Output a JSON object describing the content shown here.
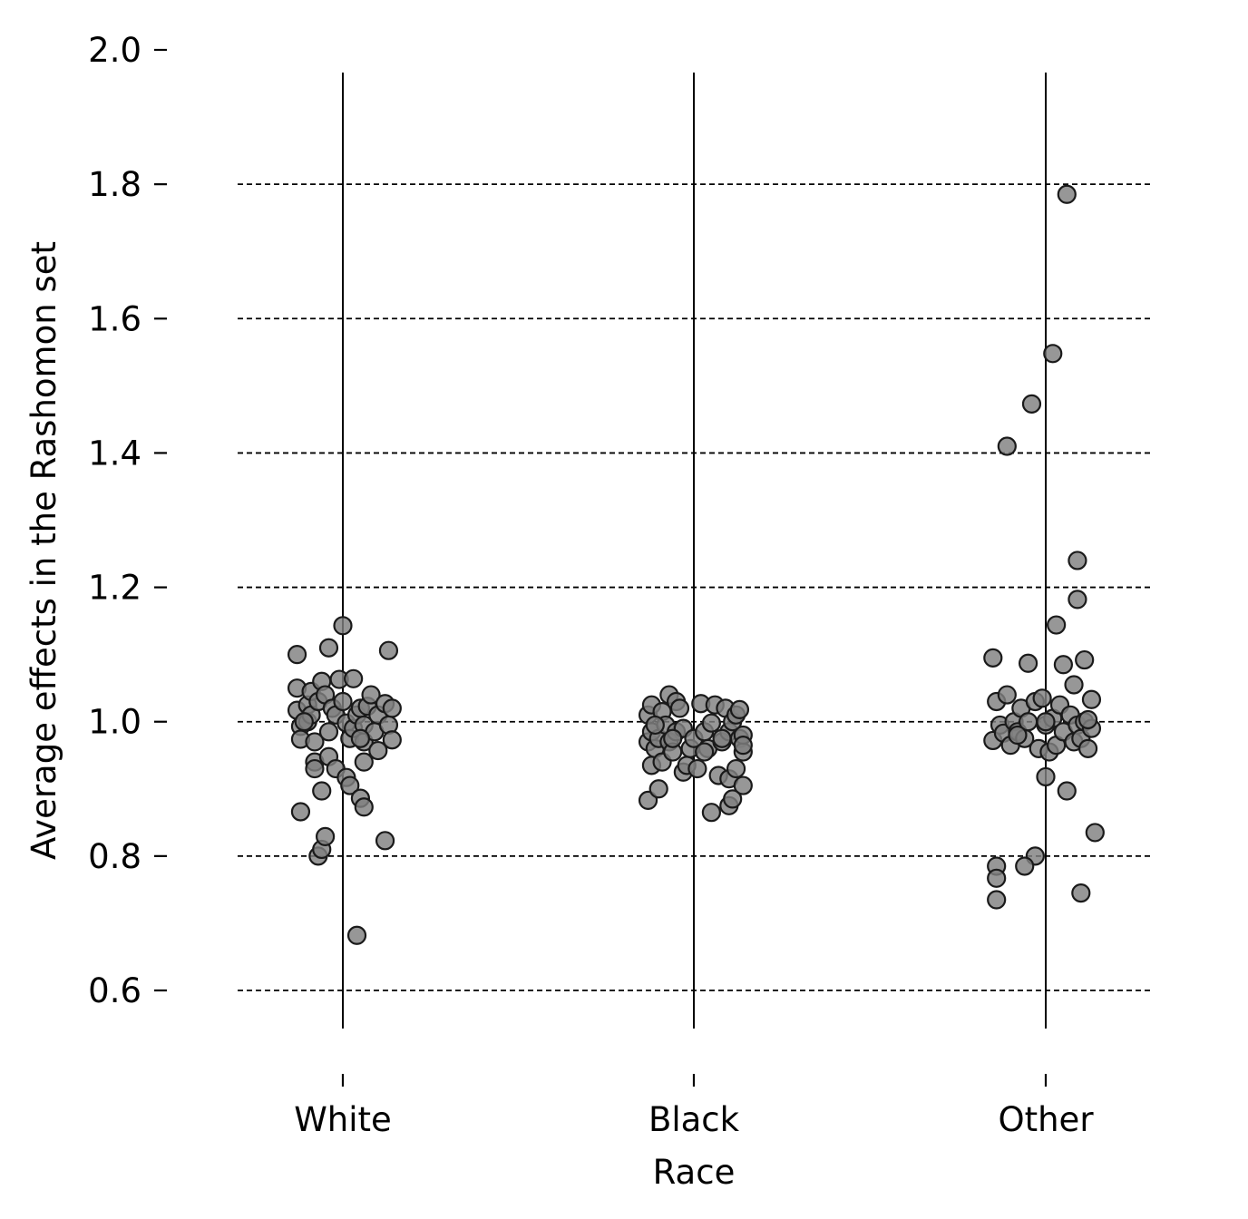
{
  "chart_data": {
    "type": "scatter",
    "subtype": "strip",
    "title": "",
    "xlabel": "Race",
    "ylabel": "Average effects in the Rashomon set",
    "categories": [
      "White",
      "Black",
      "Other"
    ],
    "ylim": [
      0.6,
      2.0
    ],
    "yticks": [
      "0.6",
      "0.8",
      "1.0",
      "1.2",
      "1.4",
      "1.6",
      "1.8",
      "2.0"
    ],
    "grid": "horizontal dashed",
    "point_color": "#808080",
    "point_edge_color": "#1a1a1a",
    "series": [
      {
        "category": "White",
        "points": [
          {
            "dx": -0.13,
            "y": 1.05
          },
          {
            "dx": -0.13,
            "y": 1.017
          },
          {
            "dx": -0.12,
            "y": 0.993
          },
          {
            "dx": -0.12,
            "y": 0.974
          },
          {
            "dx": -0.12,
            "y": 0.866
          },
          {
            "dx": -0.13,
            "y": 1.1
          },
          {
            "dx": -0.1,
            "y": 1.025
          },
          {
            "dx": -0.1,
            "y": 1.0
          },
          {
            "dx": -0.09,
            "y": 1.045
          },
          {
            "dx": -0.09,
            "y": 1.01
          },
          {
            "dx": -0.08,
            "y": 0.94
          },
          {
            "dx": -0.08,
            "y": 0.93
          },
          {
            "dx": -0.08,
            "y": 0.97
          },
          {
            "dx": -0.07,
            "y": 1.03
          },
          {
            "dx": -0.07,
            "y": 0.8
          },
          {
            "dx": -0.06,
            "y": 0.81
          },
          {
            "dx": -0.06,
            "y": 1.06
          },
          {
            "dx": -0.06,
            "y": 0.897
          },
          {
            "dx": -0.05,
            "y": 1.04
          },
          {
            "dx": -0.05,
            "y": 0.829
          },
          {
            "dx": -0.04,
            "y": 0.948
          },
          {
            "dx": -0.04,
            "y": 1.11
          },
          {
            "dx": -0.04,
            "y": 0.985
          },
          {
            "dx": -0.03,
            "y": 1.02
          },
          {
            "dx": -0.02,
            "y": 1.01
          },
          {
            "dx": -0.02,
            "y": 0.93
          },
          {
            "dx": -0.01,
            "y": 1.063
          },
          {
            "dx": 0.0,
            "y": 1.143
          },
          {
            "dx": 0.0,
            "y": 1.03
          },
          {
            "dx": 0.01,
            "y": 0.917
          },
          {
            "dx": 0.01,
            "y": 0.998
          },
          {
            "dx": 0.02,
            "y": 0.905
          },
          {
            "dx": 0.02,
            "y": 0.975
          },
          {
            "dx": 0.03,
            "y": 1.064
          },
          {
            "dx": 0.03,
            "y": 0.99
          },
          {
            "dx": 0.04,
            "y": 1.01
          },
          {
            "dx": 0.04,
            "y": 0.682
          },
          {
            "dx": 0.05,
            "y": 0.886
          },
          {
            "dx": 0.05,
            "y": 1.02
          },
          {
            "dx": 0.06,
            "y": 0.97
          },
          {
            "dx": 0.06,
            "y": 0.873
          },
          {
            "dx": 0.06,
            "y": 0.94
          },
          {
            "dx": 0.06,
            "y": 0.995
          },
          {
            "dx": 0.07,
            "y": 1.023
          },
          {
            "dx": 0.08,
            "y": 1.04
          },
          {
            "dx": 0.09,
            "y": 0.985
          },
          {
            "dx": 0.1,
            "y": 0.957
          },
          {
            "dx": 0.1,
            "y": 1.01
          },
          {
            "dx": 0.12,
            "y": 0.823
          },
          {
            "dx": 0.12,
            "y": 1.027
          },
          {
            "dx": 0.13,
            "y": 1.106
          },
          {
            "dx": 0.13,
            "y": 0.995
          },
          {
            "dx": 0.14,
            "y": 1.02
          },
          {
            "dx": 0.14,
            "y": 0.973
          },
          {
            "dx": -0.11,
            "y": 1.0
          },
          {
            "dx": 0.05,
            "y": 0.975
          }
        ]
      },
      {
        "category": "Black",
        "points": [
          {
            "dx": -0.13,
            "y": 0.883
          },
          {
            "dx": -0.13,
            "y": 0.97
          },
          {
            "dx": -0.13,
            "y": 1.01
          },
          {
            "dx": -0.12,
            "y": 1.025
          },
          {
            "dx": -0.12,
            "y": 0.985
          },
          {
            "dx": -0.12,
            "y": 0.935
          },
          {
            "dx": -0.11,
            "y": 0.96
          },
          {
            "dx": -0.1,
            "y": 0.975
          },
          {
            "dx": -0.1,
            "y": 0.9
          },
          {
            "dx": -0.09,
            "y": 1.015
          },
          {
            "dx": -0.09,
            "y": 0.94
          },
          {
            "dx": -0.08,
            "y": 0.995
          },
          {
            "dx": -0.07,
            "y": 1.04
          },
          {
            "dx": -0.07,
            "y": 0.97
          },
          {
            "dx": -0.06,
            "y": 0.955
          },
          {
            "dx": -0.05,
            "y": 1.03
          },
          {
            "dx": -0.05,
            "y": 0.985
          },
          {
            "dx": -0.04,
            "y": 1.02
          },
          {
            "dx": -0.03,
            "y": 0.925
          },
          {
            "dx": -0.03,
            "y": 0.99
          },
          {
            "dx": -0.02,
            "y": 0.935
          },
          {
            "dx": -0.01,
            "y": 0.96
          },
          {
            "dx": 0.0,
            "y": 0.975
          },
          {
            "dx": 0.01,
            "y": 0.93
          },
          {
            "dx": 0.02,
            "y": 1.027
          },
          {
            "dx": 0.03,
            "y": 0.985
          },
          {
            "dx": 0.04,
            "y": 0.96
          },
          {
            "dx": 0.05,
            "y": 0.865
          },
          {
            "dx": 0.05,
            "y": 0.998
          },
          {
            "dx": 0.06,
            "y": 1.025
          },
          {
            "dx": 0.07,
            "y": 0.92
          },
          {
            "dx": 0.08,
            "y": 0.97
          },
          {
            "dx": 0.09,
            "y": 1.02
          },
          {
            "dx": 0.1,
            "y": 0.985
          },
          {
            "dx": 0.1,
            "y": 0.875
          },
          {
            "dx": 0.1,
            "y": 0.915
          },
          {
            "dx": 0.11,
            "y": 1.0
          },
          {
            "dx": 0.11,
            "y": 0.885
          },
          {
            "dx": 0.12,
            "y": 0.93
          },
          {
            "dx": 0.12,
            "y": 1.01
          },
          {
            "dx": 0.13,
            "y": 0.975
          },
          {
            "dx": 0.13,
            "y": 1.018
          },
          {
            "dx": 0.14,
            "y": 0.955
          },
          {
            "dx": 0.14,
            "y": 0.905
          },
          {
            "dx": 0.14,
            "y": 0.98
          },
          {
            "dx": 0.14,
            "y": 0.965
          },
          {
            "dx": -0.11,
            "y": 0.995
          },
          {
            "dx": -0.06,
            "y": 0.975
          },
          {
            "dx": 0.03,
            "y": 0.955
          },
          {
            "dx": 0.08,
            "y": 0.975
          }
        ]
      },
      {
        "category": "Other",
        "points": [
          {
            "dx": 0.06,
            "y": 1.785
          },
          {
            "dx": 0.02,
            "y": 1.548
          },
          {
            "dx": -0.04,
            "y": 1.473
          },
          {
            "dx": -0.11,
            "y": 1.41
          },
          {
            "dx": 0.09,
            "y": 1.24
          },
          {
            "dx": 0.09,
            "y": 1.182
          },
          {
            "dx": 0.03,
            "y": 1.144
          },
          {
            "dx": -0.15,
            "y": 1.095
          },
          {
            "dx": -0.05,
            "y": 1.087
          },
          {
            "dx": 0.05,
            "y": 1.085
          },
          {
            "dx": 0.11,
            "y": 1.092
          },
          {
            "dx": 0.08,
            "y": 1.055
          },
          {
            "dx": -0.15,
            "y": 0.972
          },
          {
            "dx": -0.14,
            "y": 1.03
          },
          {
            "dx": -0.13,
            "y": 0.995
          },
          {
            "dx": -0.12,
            "y": 0.983
          },
          {
            "dx": -0.11,
            "y": 1.04
          },
          {
            "dx": -0.1,
            "y": 0.965
          },
          {
            "dx": -0.09,
            "y": 1.0
          },
          {
            "dx": -0.08,
            "y": 0.985
          },
          {
            "dx": -0.07,
            "y": 1.02
          },
          {
            "dx": -0.06,
            "y": 0.975
          },
          {
            "dx": -0.05,
            "y": 1.0
          },
          {
            "dx": -0.03,
            "y": 1.03
          },
          {
            "dx": -0.02,
            "y": 0.96
          },
          {
            "dx": -0.01,
            "y": 1.035
          },
          {
            "dx": 0.0,
            "y": 0.995
          },
          {
            "dx": 0.0,
            "y": 0.918
          },
          {
            "dx": 0.01,
            "y": 0.955
          },
          {
            "dx": 0.02,
            "y": 1.005
          },
          {
            "dx": 0.03,
            "y": 0.965
          },
          {
            "dx": 0.04,
            "y": 1.025
          },
          {
            "dx": 0.05,
            "y": 0.985
          },
          {
            "dx": 0.06,
            "y": 0.897
          },
          {
            "dx": 0.07,
            "y": 1.01
          },
          {
            "dx": 0.08,
            "y": 0.97
          },
          {
            "dx": 0.09,
            "y": 0.995
          },
          {
            "dx": 0.1,
            "y": 0.975
          },
          {
            "dx": 0.11,
            "y": 1.0
          },
          {
            "dx": 0.12,
            "y": 0.96
          },
          {
            "dx": 0.13,
            "y": 1.033
          },
          {
            "dx": 0.13,
            "y": 0.99
          },
          {
            "dx": 0.14,
            "y": 0.835
          },
          {
            "dx": 0.1,
            "y": 0.745
          },
          {
            "dx": -0.03,
            "y": 0.8
          },
          {
            "dx": -0.06,
            "y": 0.785
          },
          {
            "dx": -0.14,
            "y": 0.785
          },
          {
            "dx": -0.14,
            "y": 0.767
          },
          {
            "dx": -0.14,
            "y": 0.735
          },
          {
            "dx": 0.12,
            "y": 1.003
          },
          {
            "dx": -0.08,
            "y": 0.98
          },
          {
            "dx": 0.0,
            "y": 1.0
          }
        ]
      }
    ]
  }
}
